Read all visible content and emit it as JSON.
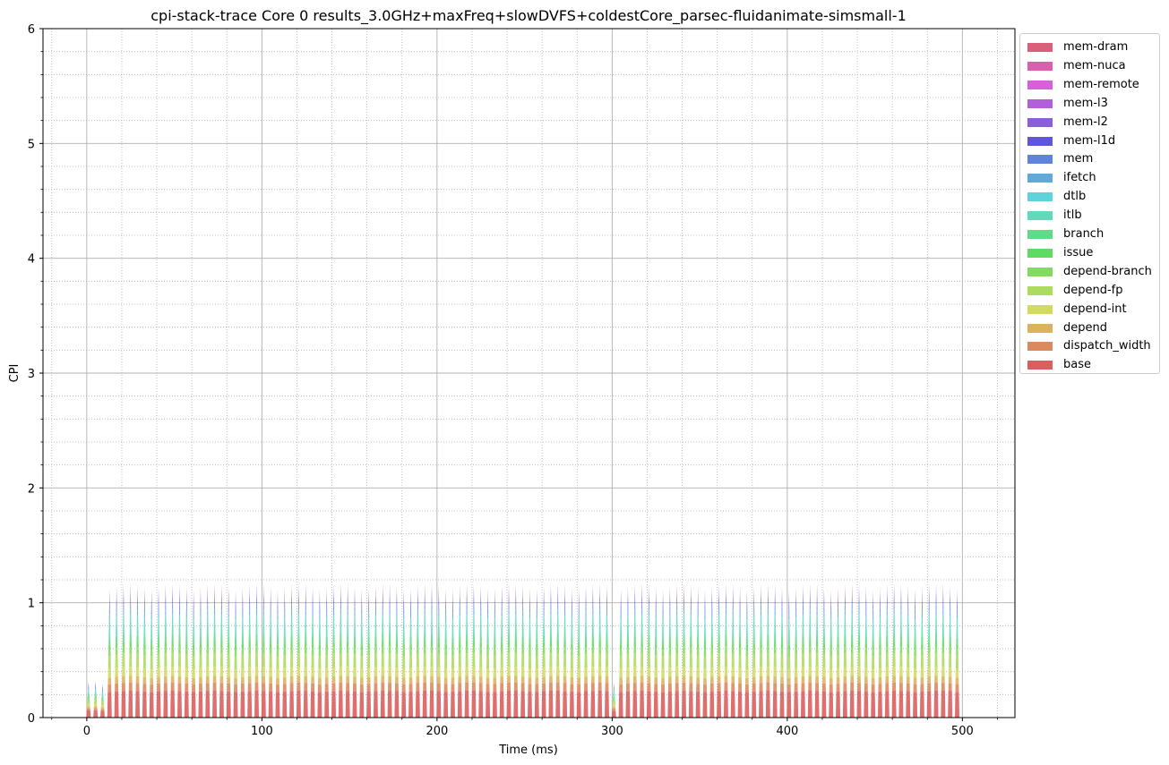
{
  "chart_data": {
    "type": "area",
    "title": "cpi-stack-trace Core 0 results_3.0GHz+maxFreq+slowDVFS+coldestCore_parsec-fluidanimate-simsmall-1",
    "xlabel": "Time (ms)",
    "ylabel": "CPI",
    "xlim": [
      -25,
      530
    ],
    "ylim": [
      0,
      6
    ],
    "x_ticks": [
      "0",
      "100",
      "200",
      "300",
      "400",
      "500"
    ],
    "y_ticks": [
      "0",
      "1",
      "2",
      "3",
      "4",
      "5",
      "6"
    ],
    "grid": "major solid, minor dotted",
    "legend_position": "outside top-right",
    "stack_order_bottom_to_top": [
      "base",
      "dispatch_width",
      "depend",
      "depend-int",
      "depend-fp",
      "depend-branch",
      "issue",
      "branch",
      "itlb",
      "dtlb",
      "ifetch",
      "mem",
      "mem-l1d",
      "mem-l2",
      "mem-l3",
      "mem-remote",
      "mem-nuca",
      "mem-dram"
    ],
    "series": [
      {
        "name": "mem-dram",
        "color": "#db5f7a"
      },
      {
        "name": "mem-nuca",
        "color": "#db5fac"
      },
      {
        "name": "mem-remote",
        "color": "#d65fdb"
      },
      {
        "name": "mem-l3",
        "color": "#b15fdb"
      },
      {
        "name": "mem-l2",
        "color": "#8a5fdb"
      },
      {
        "name": "mem-l1d",
        "color": "#6155db"
      },
      {
        "name": "mem",
        "color": "#5f82db"
      },
      {
        "name": "ifetch",
        "color": "#5faadb"
      },
      {
        "name": "dtlb",
        "color": "#5fd3db"
      },
      {
        "name": "itlb",
        "color": "#5fdbbc"
      },
      {
        "name": "branch",
        "color": "#5fdb8a"
      },
      {
        "name": "issue",
        "color": "#5fdb62"
      },
      {
        "name": "depend-branch",
        "color": "#82db5f"
      },
      {
        "name": "depend-fp",
        "color": "#acdb5f"
      },
      {
        "name": "depend-int",
        "color": "#d3db5f"
      },
      {
        "name": "depend",
        "color": "#dbb35f"
      },
      {
        "name": "dispatch_width",
        "color": "#db8a5f"
      },
      {
        "name": "base",
        "color": "#db5f5f"
      }
    ],
    "trace": {
      "period_ms": 4.0,
      "start_ms": 0,
      "end_ms": 500,
      "low_phase_ms": [
        [
          0,
          12
        ],
        [
          300,
          302
        ]
      ],
      "low_phase_total_cpi": 0.32,
      "typical_peak_total_cpi": 1.15,
      "max_peak_total_cpi": 1.21,
      "layer_fraction_at_peak": {
        "base": 0.2,
        "dispatch_width": 0.06,
        "depend": 0.05,
        "depend-int": 0.07,
        "depend-fp": 0.1,
        "depend-branch": 0.05,
        "issue": 0.04,
        "branch": 0.05,
        "itlb": 0.1,
        "dtlb": 0.05,
        "ifetch": 0.04,
        "mem": 0.04,
        "mem-l1d": 0.05,
        "mem-l2": 0.05,
        "mem-l3": 0.03,
        "mem-remote": 0.01,
        "mem-nuca": 0.01,
        "mem-dram": 0.0
      }
    }
  }
}
